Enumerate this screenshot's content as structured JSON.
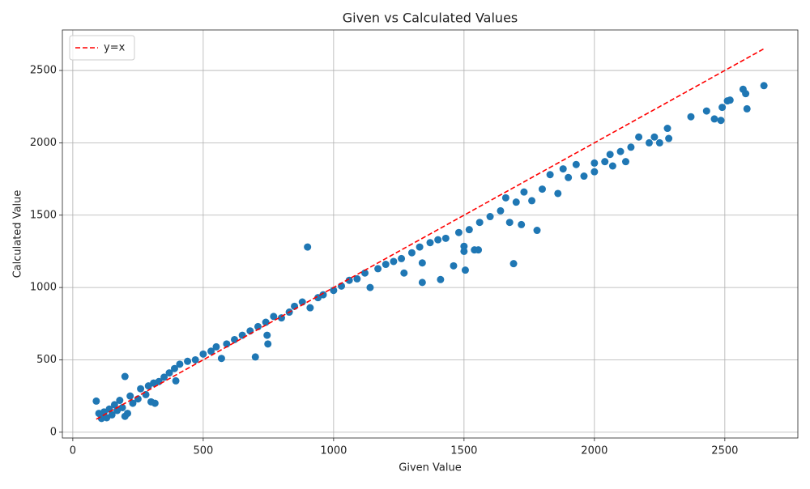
{
  "chart_data": {
    "type": "scatter",
    "title": "Given vs Calculated Values",
    "x_label": "Given Value",
    "y_label": "Calculated Value",
    "xlim": [
      -40,
      2780
    ],
    "ylim": [
      -40,
      2780
    ],
    "xticks": [
      0,
      500,
      1000,
      1500,
      2000,
      2500
    ],
    "yticks": [
      0,
      500,
      1000,
      1500,
      2000,
      2500
    ],
    "grid": true,
    "legend": "upper-left",
    "series": [
      {
        "color": "#1f77b4",
        "marker": "circle",
        "x": [
          90,
          100,
          110,
          120,
          130,
          140,
          150,
          160,
          170,
          180,
          190,
          200,
          200,
          210,
          220,
          230,
          250,
          260,
          280,
          290,
          300,
          310,
          315,
          330,
          350,
          370,
          390,
          395,
          410,
          440,
          470,
          500,
          530,
          550,
          570,
          590,
          620,
          650,
          680,
          700,
          710,
          740,
          745,
          748,
          770,
          800,
          830,
          850,
          880,
          900,
          910,
          940,
          960,
          1000,
          1030,
          1060,
          1090,
          1120,
          1140,
          1170,
          1200,
          1230,
          1260,
          1270,
          1300,
          1330,
          1340,
          1340,
          1370,
          1400,
          1410,
          1430,
          1460,
          1480,
          1500,
          1500,
          1505,
          1520,
          1540,
          1555,
          1560,
          1600,
          1640,
          1660,
          1675,
          1690,
          1700,
          1720,
          1730,
          1760,
          1780,
          1800,
          1830,
          1860,
          1880,
          1900,
          1930,
          1960,
          2000,
          2000,
          2040,
          2060,
          2070,
          2100,
          2120,
          2140,
          2170,
          2210,
          2230,
          2250,
          2280,
          2285,
          2370,
          2430,
          2460,
          2485,
          2490,
          2510,
          2520,
          2570,
          2580,
          2585,
          2650
        ],
        "values": [
          215,
          130,
          95,
          140,
          100,
          160,
          120,
          190,
          150,
          220,
          170,
          385,
          110,
          130,
          250,
          200,
          230,
          300,
          260,
          320,
          210,
          340,
          200,
          350,
          380,
          410,
          440,
          355,
          470,
          490,
          500,
          540,
          560,
          590,
          510,
          610,
          640,
          670,
          700,
          520,
          730,
          760,
          670,
          610,
          800,
          790,
          830,
          870,
          900,
          1280,
          860,
          930,
          950,
          980,
          1010,
          1050,
          1060,
          1100,
          1000,
          1130,
          1160,
          1180,
          1200,
          1100,
          1240,
          1280,
          1170,
          1035,
          1310,
          1330,
          1055,
          1340,
          1150,
          1380,
          1250,
          1285,
          1120,
          1400,
          1260,
          1260,
          1450,
          1490,
          1530,
          1620,
          1450,
          1165,
          1590,
          1435,
          1660,
          1600,
          1395,
          1680,
          1780,
          1650,
          1820,
          1760,
          1850,
          1770,
          1860,
          1800,
          1870,
          1920,
          1840,
          1940,
          1870,
          1970,
          2040,
          2000,
          2040,
          2000,
          2100,
          2030,
          2180,
          2220,
          2165,
          2155,
          2245,
          2290,
          2295,
          2370,
          2340,
          2235,
          2395
        ]
      },
      {
        "name": "y=x",
        "color": "#ff0000",
        "linestyle": "dashed",
        "x": [
          90,
          2650
        ],
        "values": [
          90,
          2650
        ]
      }
    ]
  }
}
